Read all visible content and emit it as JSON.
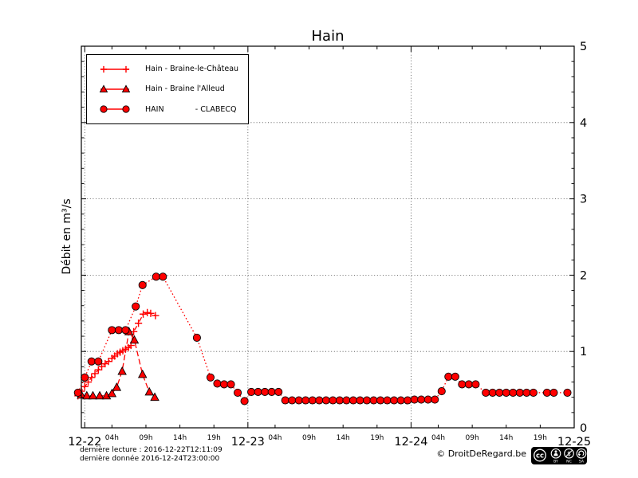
{
  "chart_data": {
    "type": "line",
    "title": "Hain",
    "colors": {
      "series_red": "#ff0000",
      "marker_edge": "#000000",
      "grid": "#000000"
    },
    "x_axis": {
      "days": [
        {
          "h": 0,
          "label": "12-22"
        },
        {
          "h": 24,
          "label": "12-23"
        },
        {
          "h": 48,
          "label": "12-24"
        },
        {
          "h": 72,
          "label": "12-25"
        }
      ],
      "hours": [
        {
          "h": 4,
          "label": "04h"
        },
        {
          "h": 9,
          "label": "09h"
        },
        {
          "h": 14,
          "label": "14h"
        },
        {
          "h": 19,
          "label": "19h"
        },
        {
          "h": 28,
          "label": "04h"
        },
        {
          "h": 33,
          "label": "09h"
        },
        {
          "h": 38,
          "label": "14h"
        },
        {
          "h": 43,
          "label": "19h"
        },
        {
          "h": 52,
          "label": "04h"
        },
        {
          "h": 57,
          "label": "09h"
        },
        {
          "h": 62,
          "label": "14h"
        },
        {
          "h": 67,
          "label": "19h"
        }
      ],
      "range_hours": [
        -0.5,
        72
      ]
    },
    "y_axis": {
      "label": "Débit en m³/s",
      "min": 0,
      "max": 5,
      "major_ticks": [
        0,
        1,
        2,
        3,
        4,
        5
      ],
      "minor_step": 0.2,
      "labels_side": "right"
    },
    "grid": {
      "horizontal_values": [
        1,
        2,
        3,
        4
      ],
      "vertical_day_hours": [
        0,
        24,
        48
      ],
      "style": "dotted"
    },
    "series": [
      {
        "name": "Hain - Braine-le-Château",
        "marker": "plus",
        "line": "dashdot",
        "color": "#ff0000",
        "points": [
          [
            -1,
            0.42
          ],
          [
            -0.5,
            0.48
          ],
          [
            0,
            0.54
          ],
          [
            0.5,
            0.6
          ],
          [
            1,
            0.66
          ],
          [
            1.5,
            0.71
          ],
          [
            2,
            0.76
          ],
          [
            2.5,
            0.8
          ],
          [
            3,
            0.84
          ],
          [
            3.5,
            0.87
          ],
          [
            4,
            0.91
          ],
          [
            4.4,
            0.94
          ],
          [
            4.8,
            0.97
          ],
          [
            5.2,
            0.99
          ],
          [
            5.6,
            1.01
          ],
          [
            6,
            1.03
          ],
          [
            6.4,
            1.05
          ],
          [
            6.8,
            1.08
          ],
          [
            7.2,
            1.26
          ],
          [
            7.9,
            1.37
          ],
          [
            8.6,
            1.49
          ],
          [
            9.2,
            1.51
          ],
          [
            9.7,
            1.5
          ],
          [
            10.4,
            1.47
          ]
        ]
      },
      {
        "name": "Hain - Braine l'Alleud",
        "marker": "triangle",
        "line": "dashed",
        "color": "#ff0000",
        "points": [
          [
            -0.5,
            0.43
          ],
          [
            0.3,
            0.42
          ],
          [
            1.2,
            0.42
          ],
          [
            2.2,
            0.42
          ],
          [
            3.2,
            0.42
          ],
          [
            4,
            0.45
          ],
          [
            4.7,
            0.53
          ],
          [
            5.5,
            0.74
          ],
          [
            6.5,
            1.26
          ],
          [
            7.3,
            1.15
          ],
          [
            8.5,
            0.7
          ],
          [
            9.5,
            0.47
          ],
          [
            10.3,
            0.4
          ]
        ]
      },
      {
        "name": "HAIN - CLABECQ",
        "marker": "circle",
        "line": "dotted",
        "color": "#ff0000",
        "points": [
          [
            -1,
            0.46
          ],
          [
            0,
            0.66
          ],
          [
            1,
            0.87
          ],
          [
            2,
            0.87
          ],
          [
            4,
            1.28
          ],
          [
            5,
            1.28
          ],
          [
            6,
            1.28
          ],
          [
            7.5,
            1.59
          ],
          [
            8.5,
            1.87
          ],
          [
            10.5,
            1.98
          ],
          [
            11.5,
            1.98
          ],
          [
            16.5,
            1.18
          ],
          [
            18.5,
            0.66
          ],
          [
            19.5,
            0.58
          ],
          [
            20.5,
            0.57
          ],
          [
            21.5,
            0.57
          ],
          [
            22.5,
            0.46
          ],
          [
            23.5,
            0.35
          ],
          [
            24.5,
            0.47
          ],
          [
            25.5,
            0.47
          ],
          [
            26.5,
            0.47
          ],
          [
            27.5,
            0.47
          ],
          [
            28.5,
            0.47
          ],
          [
            29.5,
            0.36
          ],
          [
            30.5,
            0.36
          ],
          [
            31.5,
            0.36
          ],
          [
            32.5,
            0.36
          ],
          [
            33.5,
            0.36
          ],
          [
            34.5,
            0.36
          ],
          [
            35.5,
            0.36
          ],
          [
            36.5,
            0.36
          ],
          [
            37.5,
            0.36
          ],
          [
            38.5,
            0.36
          ],
          [
            39.5,
            0.36
          ],
          [
            40.5,
            0.36
          ],
          [
            41.5,
            0.36
          ],
          [
            42.5,
            0.36
          ],
          [
            43.5,
            0.36
          ],
          [
            44.5,
            0.36
          ],
          [
            45.5,
            0.36
          ],
          [
            46.5,
            0.36
          ],
          [
            47.5,
            0.36
          ],
          [
            48.5,
            0.37
          ],
          [
            49.5,
            0.37
          ],
          [
            50.5,
            0.37
          ],
          [
            51.5,
            0.37
          ],
          [
            52.5,
            0.48
          ],
          [
            53.5,
            0.67
          ],
          [
            54.5,
            0.67
          ],
          [
            55.5,
            0.57
          ],
          [
            56.5,
            0.57
          ],
          [
            57.5,
            0.57
          ],
          [
            59,
            0.46
          ],
          [
            60,
            0.46
          ],
          [
            61,
            0.46
          ],
          [
            62,
            0.46
          ],
          [
            63,
            0.46
          ],
          [
            64,
            0.46
          ],
          [
            65,
            0.46
          ],
          [
            66,
            0.46
          ],
          [
            68,
            0.46
          ],
          [
            69,
            0.46
          ],
          [
            71,
            0.46
          ]
        ]
      }
    ]
  },
  "legend": {
    "entries": [
      {
        "label": "Hain - Braine-le-Château",
        "series": 0
      },
      {
        "label": "Hain - Braine l'Alleud",
        "series": 1
      },
      {
        "label": "HAIN             - CLABECQ",
        "series": 2
      }
    ]
  },
  "footer": {
    "last_reading": "dernière lecture : 2016-12-22T12:11:09",
    "last_data": "dernière donnée  2016-12-24T23:00:00",
    "copyright": "© DroitDeRegard.be",
    "license": {
      "name": "CC BY-NC-SA",
      "icons": [
        "cc",
        "by",
        "nc",
        "sa"
      ],
      "labels": [
        "BY",
        "NC",
        "SA"
      ]
    }
  }
}
